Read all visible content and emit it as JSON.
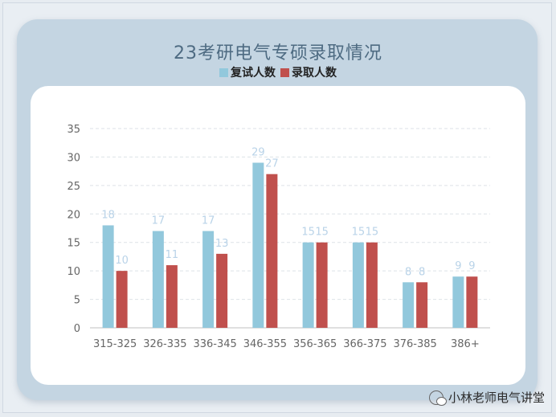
{
  "chart_data": {
    "type": "bar",
    "title": "23考研电气专硕录取情况",
    "categories": [
      "315-325",
      "326-335",
      "336-345",
      "346-355",
      "356-365",
      "366-375",
      "376-385",
      "386+"
    ],
    "series": [
      {
        "name": "复试人数",
        "values": [
          18,
          17,
          17,
          29,
          15,
          15,
          8,
          9
        ],
        "color": "#92c8dc"
      },
      {
        "name": "录取人数",
        "values": [
          10,
          11,
          13,
          27,
          15,
          15,
          8,
          9
        ],
        "color": "#c0504d"
      }
    ],
    "ylim": [
      0,
      35
    ],
    "yticks": [
      0,
      5,
      10,
      15,
      20,
      25,
      30,
      35
    ],
    "grid": true,
    "legend": "top-center",
    "data_label_color": "#b9d3e8"
  },
  "watermark": {
    "text": "小林老师电气讲堂",
    "icon": "wechat-icon"
  }
}
